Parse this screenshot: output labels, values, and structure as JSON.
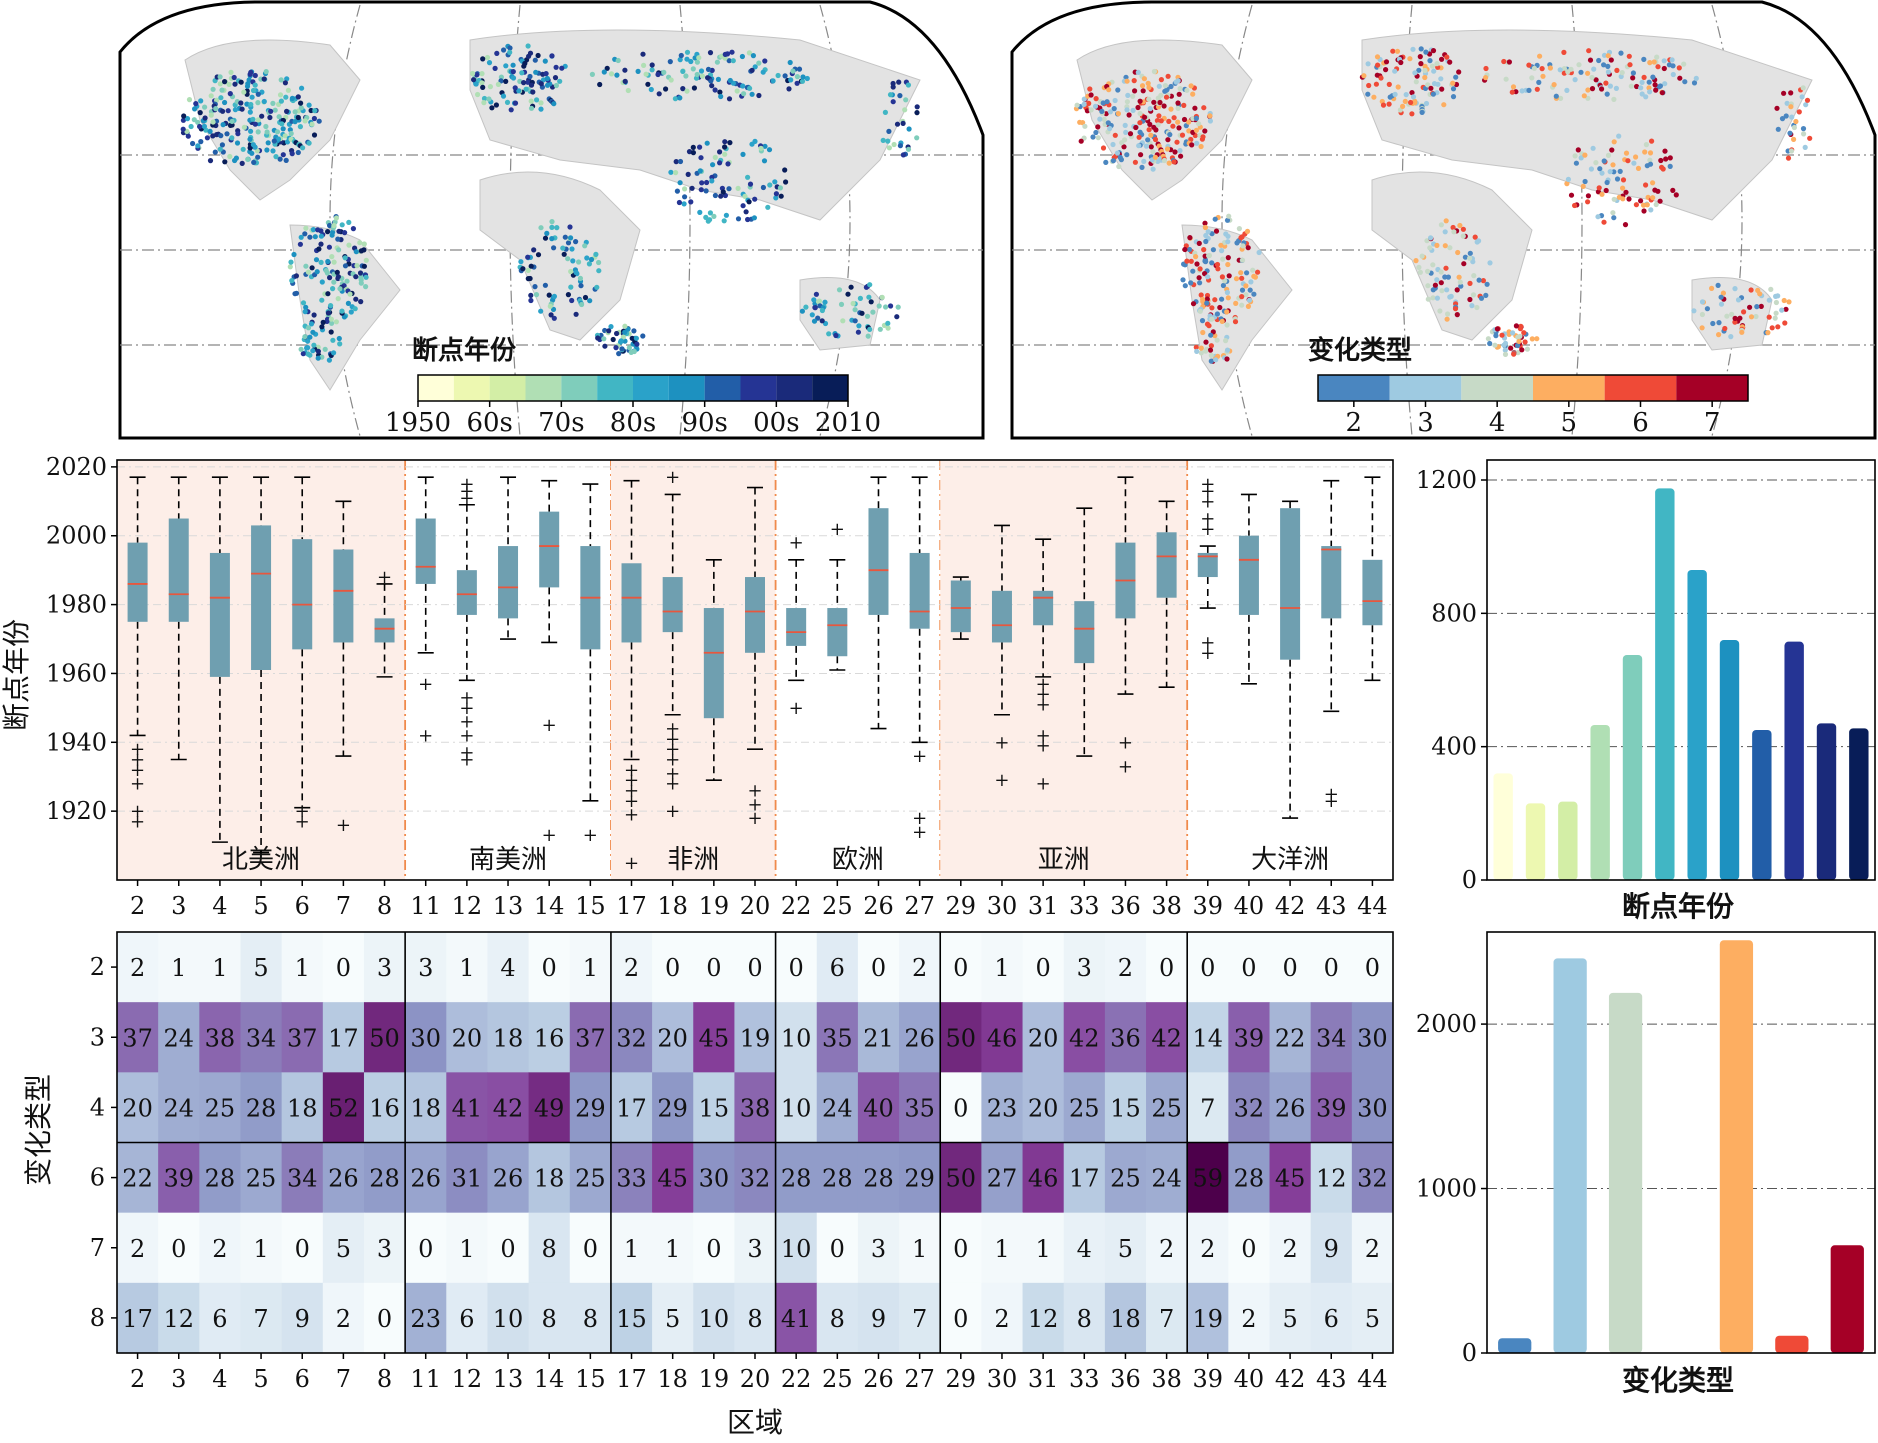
{
  "maps": [
    {
      "id": "map-breakpoint-year",
      "colorbar_title": "断点年份",
      "colors": [
        "#ffffd9",
        "#edf8b1",
        "#d3eea6",
        "#b0dfb4",
        "#7fcdbb",
        "#41b6c4",
        "#2aa2c9",
        "#1d91c0",
        "#225ea8",
        "#253494",
        "#1a2a7a",
        "#081d58"
      ],
      "tick_labels": [
        "1950",
        "60s",
        "70s",
        "80s",
        "90s",
        "00s",
        "2010"
      ]
    },
    {
      "id": "map-change-type",
      "colorbar_title": "变化类型",
      "colors": [
        "#4a86c0",
        "#9ecae1",
        "#c7dac7",
        "#fdae61",
        "#ef4a37",
        "#a50026"
      ],
      "tick_labels": [
        "2",
        "3",
        "4",
        "5",
        "6",
        "7"
      ]
    }
  ],
  "chart_data": [
    {
      "type": "box",
      "id": "boxplot",
      "ylabel": "断点年份",
      "ylim": [
        1900,
        2022
      ],
      "yticks": [
        1920,
        1940,
        1960,
        1980,
        2000,
        2020
      ],
      "box_color": "#6f9fb0",
      "median_color": "#e8573e",
      "outlier_color": "#ef4a4a",
      "groups": [
        {
          "name": "北美洲",
          "shaded": true,
          "regions": [
            "2",
            "3",
            "4",
            "5",
            "6",
            "7",
            "8"
          ]
        },
        {
          "name": "南美洲",
          "shaded": false,
          "regions": [
            "11",
            "12",
            "13",
            "14",
            "15"
          ]
        },
        {
          "name": "非洲",
          "shaded": true,
          "regions": [
            "17",
            "18",
            "19",
            "20"
          ]
        },
        {
          "name": "欧洲",
          "shaded": false,
          "regions": [
            "22",
            "25",
            "26",
            "27"
          ]
        },
        {
          "name": "亚洲",
          "shaded": true,
          "regions": [
            "29",
            "30",
            "31",
            "33",
            "36",
            "38"
          ]
        },
        {
          "name": "大洋洲",
          "shaded": false,
          "regions": [
            "39",
            "40",
            "42",
            "43",
            "44"
          ]
        }
      ],
      "boxes": [
        {
          "region": "2",
          "whislo": 1942,
          "q1": 1975,
          "med": 1986,
          "q3": 1998,
          "whishi": 2017,
          "fliers": [
            1917,
            1920,
            1928,
            1932,
            1935,
            1938
          ]
        },
        {
          "region": "3",
          "whislo": 1935,
          "q1": 1975,
          "med": 1983,
          "q3": 2005,
          "whishi": 2017,
          "fliers": []
        },
        {
          "region": "4",
          "whislo": 1911,
          "q1": 1959,
          "med": 1982,
          "q3": 1995,
          "whishi": 2017,
          "fliers": []
        },
        {
          "region": "5",
          "whislo": 1908,
          "q1": 1961,
          "med": 1989,
          "q3": 2003,
          "whishi": 2017,
          "fliers": []
        },
        {
          "region": "6",
          "whislo": 1921,
          "q1": 1967,
          "med": 1980,
          "q3": 1999,
          "whishi": 2017,
          "fliers": [
            1917,
            1920
          ]
        },
        {
          "region": "7",
          "whislo": 1936,
          "q1": 1969,
          "med": 1984,
          "q3": 1996,
          "whishi": 2010,
          "fliers": [
            1916
          ]
        },
        {
          "region": "8",
          "whislo": 1959,
          "q1": 1969,
          "med": 1973,
          "q3": 1976,
          "whishi": 1986,
          "fliers": [
            1988
          ]
        },
        {
          "region": "11",
          "whislo": 1966,
          "q1": 1986,
          "med": 1991,
          "q3": 2005,
          "whishi": 2017,
          "fliers": [
            1942,
            1957
          ]
        },
        {
          "region": "12",
          "whislo": 1958,
          "q1": 1977,
          "med": 1983,
          "q3": 1990,
          "whishi": 2009,
          "fliers": [
            1935,
            1937,
            1942,
            1946,
            1950,
            1953,
            2011,
            2013,
            2015
          ]
        },
        {
          "region": "13",
          "whislo": 1970,
          "q1": 1976,
          "med": 1985,
          "q3": 1997,
          "whishi": 2017,
          "fliers": []
        },
        {
          "region": "14",
          "whislo": 1969,
          "q1": 1985,
          "med": 1997,
          "q3": 2007,
          "whishi": 2016,
          "fliers": [
            1913,
            1945
          ]
        },
        {
          "region": "15",
          "whislo": 1923,
          "q1": 1967,
          "med": 1982,
          "q3": 1997,
          "whishi": 2015,
          "fliers": [
            1913
          ]
        },
        {
          "region": "17",
          "whislo": 1935,
          "q1": 1969,
          "med": 1982,
          "q3": 1992,
          "whishi": 2016,
          "fliers": [
            1905,
            1919,
            1923,
            1926,
            1929,
            1932
          ]
        },
        {
          "region": "18",
          "whislo": 1948,
          "q1": 1972,
          "med": 1978,
          "q3": 1988,
          "whishi": 2012,
          "fliers": [
            1920,
            1928,
            1931,
            1935,
            1938,
            1941,
            1944,
            2017
          ]
        },
        {
          "region": "19",
          "whislo": 1929,
          "q1": 1947,
          "med": 1966,
          "q3": 1979,
          "whishi": 1993,
          "fliers": []
        },
        {
          "region": "20",
          "whislo": 1938,
          "q1": 1966,
          "med": 1978,
          "q3": 1988,
          "whishi": 2014,
          "fliers": [
            1918,
            1922,
            1926
          ]
        },
        {
          "region": "22",
          "whislo": 1958,
          "q1": 1968,
          "med": 1972,
          "q3": 1979,
          "whishi": 1993,
          "fliers": [
            1950,
            1998
          ]
        },
        {
          "region": "25",
          "whislo": 1961,
          "q1": 1965,
          "med": 1974,
          "q3": 1979,
          "whishi": 1993,
          "fliers": [
            2002
          ]
        },
        {
          "region": "26",
          "whislo": 1944,
          "q1": 1977,
          "med": 1990,
          "q3": 2008,
          "whishi": 2017,
          "fliers": []
        },
        {
          "region": "27",
          "whislo": 1940,
          "q1": 1973,
          "med": 1978,
          "q3": 1995,
          "whishi": 2017,
          "fliers": [
            1914,
            1918,
            1936
          ]
        },
        {
          "region": "29",
          "whislo": 1970,
          "q1": 1972,
          "med": 1979,
          "q3": 1987,
          "whishi": 1988,
          "fliers": []
        },
        {
          "region": "30",
          "whislo": 1948,
          "q1": 1969,
          "med": 1974,
          "q3": 1984,
          "whishi": 2003,
          "fliers": [
            1929,
            1940
          ]
        },
        {
          "region": "31",
          "whislo": 1959,
          "q1": 1974,
          "med": 1982,
          "q3": 1984,
          "whishi": 1999,
          "fliers": [
            1928,
            1939,
            1942,
            1951,
            1954,
            1957
          ]
        },
        {
          "region": "33",
          "whislo": 1936,
          "q1": 1963,
          "med": 1973,
          "q3": 1981,
          "whishi": 2008,
          "fliers": []
        },
        {
          "region": "36",
          "whislo": 1954,
          "q1": 1976,
          "med": 1987,
          "q3": 1998,
          "whishi": 2017,
          "fliers": [
            1933,
            1940
          ]
        },
        {
          "region": "38",
          "whislo": 1956,
          "q1": 1982,
          "med": 1994,
          "q3": 2001,
          "whishi": 2010,
          "fliers": []
        },
        {
          "region": "39",
          "whislo": 1979,
          "q1": 1988,
          "med": 1994,
          "q3": 1995,
          "whishi": 1997,
          "fliers": [
            1966,
            1969,
            2002,
            2005,
            2010,
            2013,
            2015
          ]
        },
        {
          "region": "40",
          "whislo": 1957,
          "q1": 1977,
          "med": 1993,
          "q3": 2000,
          "whishi": 2012,
          "fliers": []
        },
        {
          "region": "42",
          "whislo": 1918,
          "q1": 1964,
          "med": 1979,
          "q3": 2008,
          "whishi": 2010,
          "fliers": []
        },
        {
          "region": "43",
          "whislo": 1949,
          "q1": 1976,
          "med": 1996,
          "q3": 1997,
          "whishi": 2016,
          "fliers": [
            1923,
            1925
          ]
        },
        {
          "region": "44",
          "whislo": 1958,
          "q1": 1974,
          "med": 1981,
          "q3": 1993,
          "whishi": 2017,
          "fliers": []
        }
      ]
    },
    {
      "type": "bar",
      "id": "bar-breakpoint-year",
      "xlabel": "断点年份",
      "ylim": [
        0,
        1260
      ],
      "yticks": [
        0,
        400,
        800,
        1200
      ],
      "values": [
        320,
        230,
        235,
        465,
        675,
        1175,
        930,
        720,
        450,
        715,
        470,
        455
      ],
      "colors": [
        "#ffffd9",
        "#edf8b1",
        "#d3eea6",
        "#b0dfb4",
        "#7fcdbb",
        "#41b6c4",
        "#2aa2c9",
        "#1d91c0",
        "#225ea8",
        "#253494",
        "#1a2a7a",
        "#081d58"
      ]
    },
    {
      "type": "heatmap",
      "id": "heatmap",
      "ylabel": "变化类型",
      "xlabel": "区域",
      "rows": [
        "2",
        "3",
        "4",
        "6",
        "7",
        "8"
      ],
      "cols": [
        "2",
        "3",
        "4",
        "5",
        "6",
        "7",
        "8",
        "11",
        "12",
        "13",
        "14",
        "15",
        "17",
        "18",
        "19",
        "20",
        "22",
        "25",
        "26",
        "27",
        "29",
        "30",
        "31",
        "33",
        "36",
        "38",
        "39",
        "40",
        "42",
        "43",
        "44"
      ],
      "group_breaks_after": [
        "8",
        "15",
        "20",
        "27",
        "38"
      ],
      "row_breaks_after": [
        "4"
      ],
      "vmax": 59,
      "values": [
        [
          2,
          1,
          1,
          5,
          1,
          0,
          3,
          3,
          1,
          4,
          0,
          1,
          2,
          0,
          0,
          0,
          0,
          6,
          0,
          2,
          0,
          1,
          0,
          3,
          2,
          0,
          0,
          0,
          0,
          0,
          0
        ],
        [
          37,
          24,
          38,
          34,
          37,
          17,
          50,
          30,
          20,
          18,
          16,
          37,
          32,
          20,
          45,
          19,
          10,
          35,
          21,
          26,
          50,
          46,
          20,
          42,
          36,
          42,
          14,
          39,
          22,
          34,
          30
        ],
        [
          20,
          24,
          25,
          28,
          18,
          52,
          16,
          18,
          41,
          42,
          49,
          29,
          17,
          29,
          15,
          38,
          10,
          24,
          40,
          35,
          0,
          23,
          20,
          25,
          15,
          25,
          7,
          32,
          26,
          39,
          30
        ],
        [
          22,
          39,
          28,
          25,
          34,
          26,
          28,
          26,
          31,
          26,
          18,
          25,
          33,
          45,
          30,
          32,
          28,
          28,
          28,
          29,
          50,
          27,
          46,
          17,
          25,
          24,
          59,
          28,
          45,
          12,
          32
        ],
        [
          2,
          0,
          2,
          1,
          0,
          5,
          3,
          0,
          1,
          0,
          8,
          0,
          1,
          1,
          0,
          3,
          10,
          0,
          3,
          1,
          0,
          1,
          1,
          4,
          5,
          2,
          2,
          0,
          2,
          9,
          2
        ],
        [
          17,
          12,
          6,
          7,
          9,
          2,
          0,
          23,
          6,
          10,
          8,
          8,
          15,
          5,
          10,
          8,
          41,
          8,
          9,
          7,
          0,
          2,
          12,
          8,
          18,
          7,
          19,
          2,
          5,
          6,
          5
        ]
      ]
    },
    {
      "type": "bar",
      "id": "bar-change-type",
      "xlabel": "变化类型",
      "ylim": [
        0,
        2560
      ],
      "yticks": [
        0,
        1000,
        2000
      ],
      "values": [
        90,
        2400,
        2190,
        0,
        2510,
        105,
        655
      ],
      "colors": [
        "#4a86c0",
        "#9ecae1",
        "#c7dac7",
        "#ffffff",
        "#fdae61",
        "#ef4a37",
        "#a50026"
      ]
    }
  ]
}
